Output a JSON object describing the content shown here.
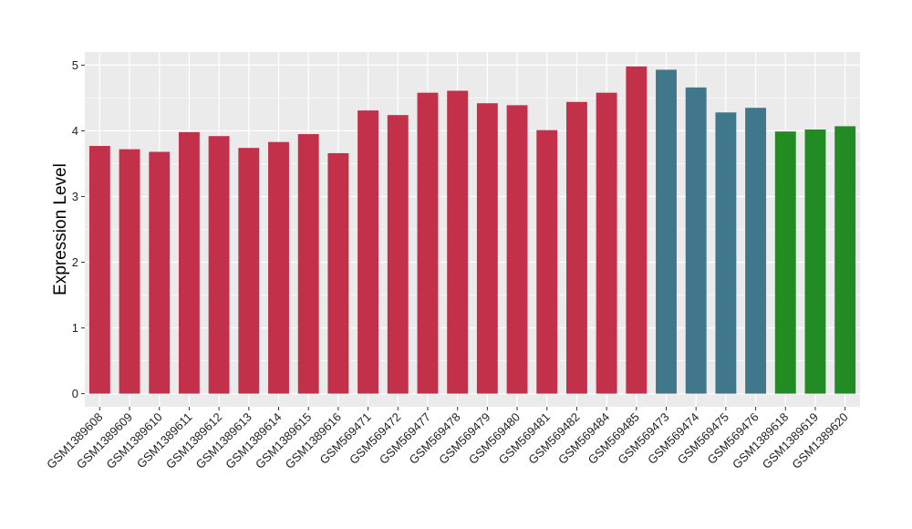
{
  "chart_data": {
    "type": "bar",
    "title": "",
    "xlabel": "",
    "ylabel": "Expression Level",
    "ylim": [
      -0.2,
      5.2
    ],
    "yticks": [
      0,
      1,
      2,
      3,
      4,
      5
    ],
    "grid": true,
    "legend": "none",
    "colors": {
      "panel": "#ebebeb",
      "grid": "#ffffff",
      "red": "#c3304a",
      "teal": "#40778a",
      "green": "#238b24"
    },
    "categories": [
      "GSM1389608",
      "GSM1389609",
      "GSM1389610",
      "GSM1389611",
      "GSM1389612",
      "GSM1389613",
      "GSM1389614",
      "GSM1389615",
      "GSM1389616",
      "GSM569471",
      "GSM569472",
      "GSM569477",
      "GSM569478",
      "GSM569479",
      "GSM569480",
      "GSM569481",
      "GSM569482",
      "GSM569484",
      "GSM569485",
      "GSM569473",
      "GSM569474",
      "GSM569475",
      "GSM569476",
      "GSM1389618",
      "GSM1389619",
      "GSM1389620"
    ],
    "values": [
      3.77,
      3.72,
      3.68,
      3.98,
      3.92,
      3.74,
      3.83,
      3.95,
      3.66,
      4.31,
      4.24,
      4.58,
      4.61,
      4.42,
      4.39,
      4.01,
      4.44,
      4.58,
      4.98,
      4.93,
      4.66,
      4.28,
      4.35,
      3.99,
      4.02,
      4.07
    ],
    "bar_colors": [
      "#c3304a",
      "#c3304a",
      "#c3304a",
      "#c3304a",
      "#c3304a",
      "#c3304a",
      "#c3304a",
      "#c3304a",
      "#c3304a",
      "#c3304a",
      "#c3304a",
      "#c3304a",
      "#c3304a",
      "#c3304a",
      "#c3304a",
      "#c3304a",
      "#c3304a",
      "#c3304a",
      "#c3304a",
      "#40778a",
      "#40778a",
      "#40778a",
      "#40778a",
      "#238b24",
      "#238b24",
      "#238b24"
    ]
  }
}
